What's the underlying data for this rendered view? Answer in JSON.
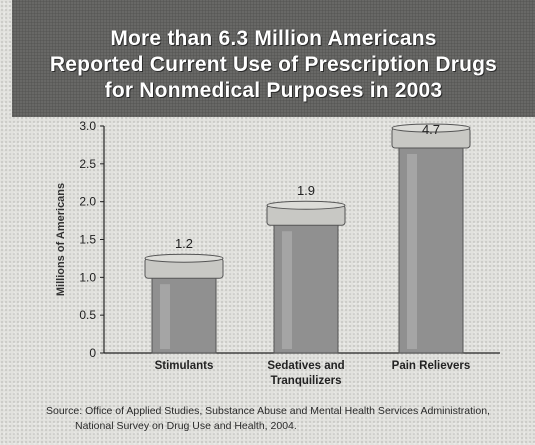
{
  "title_lines": [
    "More than 6.3 Million Americans",
    "Reported Current Use of Prescription Drugs",
    "for Nonmedical Purposes in 2003"
  ],
  "source_lines": [
    "Source: Office of Applied Studies, Substance Abuse and Mental Health Services Administration,",
    "National Survey on Drug Use and Health, 2004."
  ],
  "colors": {
    "title_band": "#6e6e6c",
    "bottle_body": "#909090",
    "bottle_cap": "#c8c8c4",
    "axis": "#222222"
  },
  "chart_data": {
    "type": "bar",
    "title": "More than 6.3 Million Americans Reported Current Use of Prescription Drugs for Nonmedical Purposes in 2003",
    "ylabel": "Millions of Americans",
    "xlabel": "",
    "ylim": [
      0,
      3.0
    ],
    "yticks": [
      "0",
      "0.5",
      "1.0",
      "1.5",
      "2.0",
      "2.5",
      "3.0"
    ],
    "categories": [
      "Stimulants",
      "Sedatives and Tranquilizers",
      "Pain Relievers"
    ],
    "category_label_lines": [
      [
        "Stimulants"
      ],
      [
        "Sedatives and",
        "Tranquilizers"
      ],
      [
        "Pain Relievers"
      ]
    ],
    "values": [
      1.2,
      1.9,
      4.7
    ],
    "data_labels": [
      "1.2",
      "1.9",
      "4.7"
    ],
    "grid": false,
    "mark_style": "pill-bottle"
  }
}
